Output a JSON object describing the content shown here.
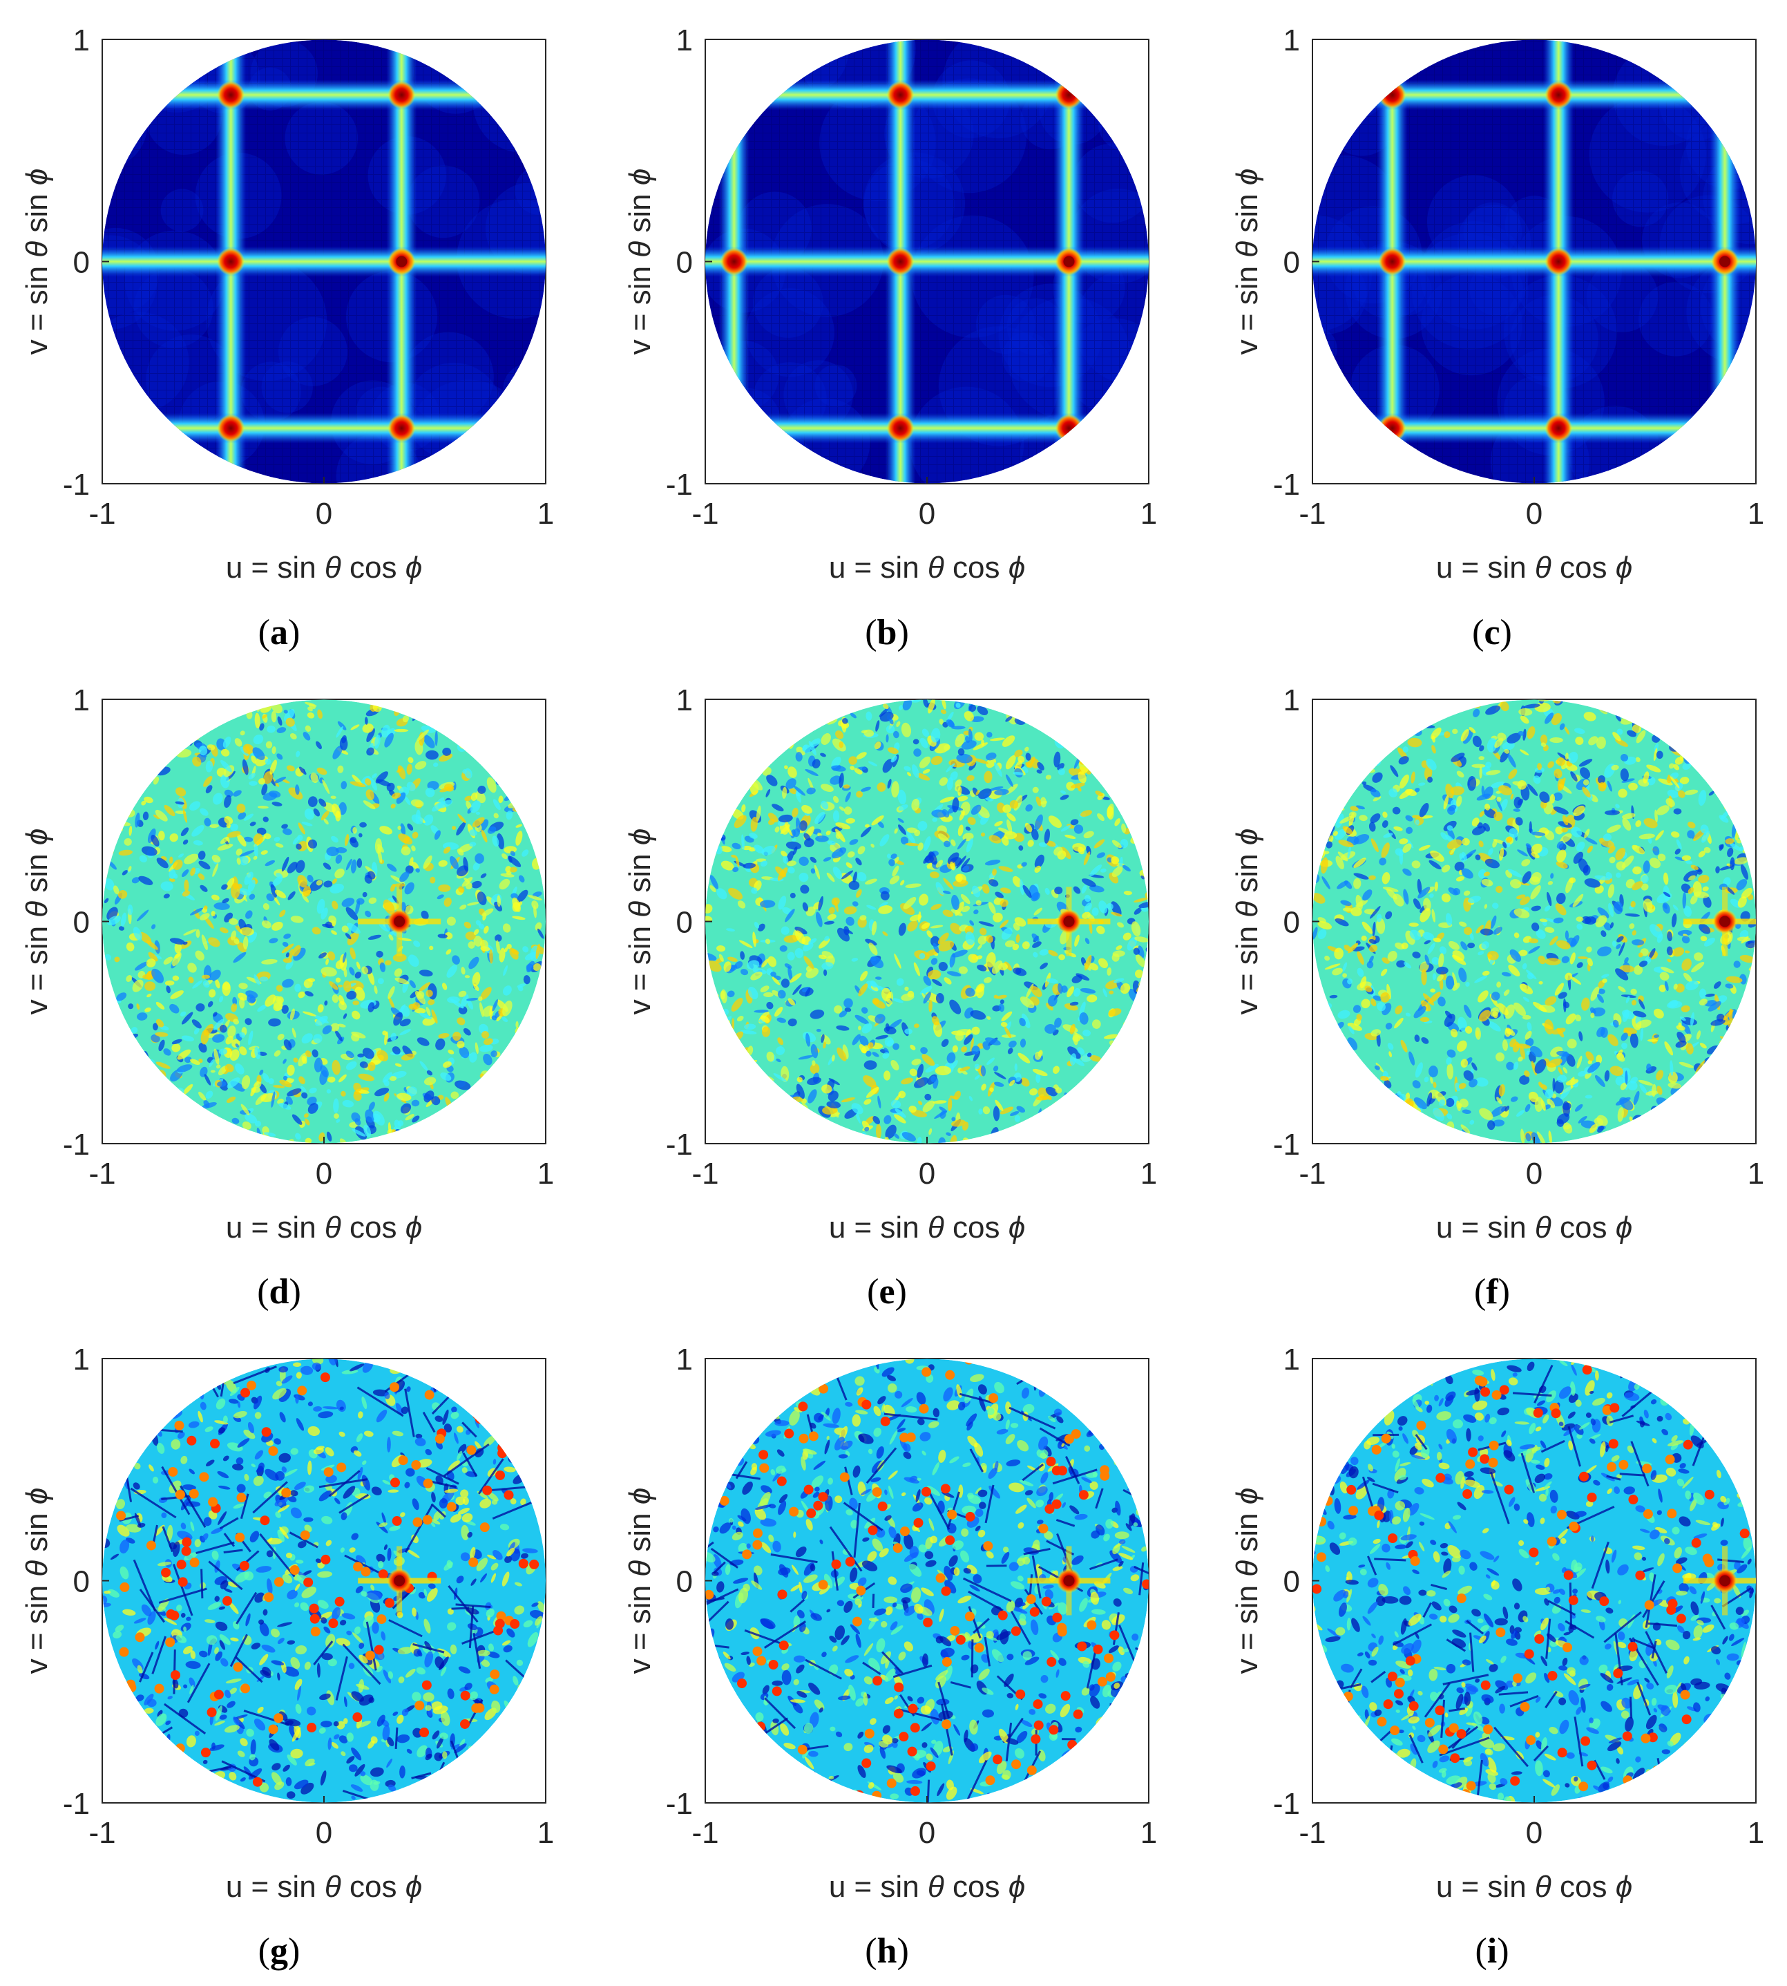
{
  "chart_data": [
    {
      "panel": "a",
      "type": "heatmap",
      "pattern": "grid",
      "xlabel_parts": [
        "u = sin ",
        "θ",
        " cos ",
        "ϕ"
      ],
      "ylabel_parts": [
        "v = sin ",
        "θ",
        " sin ",
        "ϕ"
      ],
      "xlim": [
        -1,
        1
      ],
      "ylim": [
        -1,
        1
      ],
      "xticks": [
        "-1",
        "0",
        "1"
      ],
      "yticks": [
        "-1",
        "0",
        "1"
      ],
      "grid_u": [
        -0.42,
        0.35
      ],
      "grid_v": [
        -0.75,
        0.0,
        0.75
      ],
      "main_beam": [
        0.35,
        0.0
      ]
    },
    {
      "panel": "b",
      "type": "heatmap",
      "pattern": "grid",
      "xlabel_parts": [
        "u = sin ",
        "θ",
        " cos ",
        "ϕ"
      ],
      "ylabel_parts": [
        "v = sin ",
        "θ",
        " sin ",
        "ϕ"
      ],
      "xlim": [
        -1,
        1
      ],
      "ylim": [
        -1,
        1
      ],
      "xticks": [
        "-1",
        "0",
        "1"
      ],
      "yticks": [
        "-1",
        "0",
        "1"
      ],
      "grid_u": [
        -0.87,
        -0.12,
        0.64
      ],
      "grid_v": [
        -0.75,
        0.0,
        0.75
      ],
      "main_beam": [
        0.64,
        0.0
      ]
    },
    {
      "panel": "c",
      "type": "heatmap",
      "pattern": "grid",
      "xlabel_parts": [
        "u = sin ",
        "θ",
        " cos ",
        "ϕ"
      ],
      "ylabel_parts": [
        "v = sin ",
        "θ",
        " sin ",
        "ϕ"
      ],
      "xlim": [
        -1,
        1
      ],
      "ylim": [
        -1,
        1
      ],
      "xticks": [
        "-1",
        "0",
        "1"
      ],
      "yticks": [
        "-1",
        "0",
        "1"
      ],
      "grid_u": [
        -0.64,
        0.11,
        0.86
      ],
      "grid_v": [
        -0.75,
        0.0,
        0.75
      ],
      "main_beam": [
        0.86,
        0.0
      ]
    },
    {
      "panel": "d",
      "type": "heatmap",
      "pattern": "noise",
      "xlabel_parts": [
        "u = sin ",
        "θ",
        " cos ",
        "ϕ"
      ],
      "ylabel_parts": [
        "v = sin ",
        "θ",
        " sin ",
        "ϕ"
      ],
      "xlim": [
        -1,
        1
      ],
      "ylim": [
        -1,
        1
      ],
      "xticks": [
        "-1",
        "0",
        "1"
      ],
      "yticks": [
        "-1",
        "0",
        "1"
      ],
      "main_beam": [
        0.34,
        0.0
      ]
    },
    {
      "panel": "e",
      "type": "heatmap",
      "pattern": "noise",
      "xlabel_parts": [
        "u = sin ",
        "θ",
        " cos ",
        "ϕ"
      ],
      "ylabel_parts": [
        "v = sin ",
        "θ",
        " sin ",
        "ϕ"
      ],
      "xlim": [
        -1,
        1
      ],
      "ylim": [
        -1,
        1
      ],
      "xticks": [
        "-1",
        "0",
        "1"
      ],
      "yticks": [
        "-1",
        "0",
        "1"
      ],
      "main_beam": [
        0.64,
        0.0
      ]
    },
    {
      "panel": "f",
      "type": "heatmap",
      "pattern": "noise",
      "xlabel_parts": [
        "u = sin ",
        "θ",
        " cos ",
        "ϕ"
      ],
      "ylabel_parts": [
        "v = sin ",
        "θ",
        " sin ",
        "ϕ"
      ],
      "xlim": [
        -1,
        1
      ],
      "ylim": [
        -1,
        1
      ],
      "xticks": [
        "-1",
        "0",
        "1"
      ],
      "yticks": [
        "-1",
        "0",
        "1"
      ],
      "main_beam": [
        0.86,
        0.0
      ]
    },
    {
      "panel": "g",
      "type": "heatmap",
      "pattern": "sparse",
      "xlabel_parts": [
        "u = sin ",
        "θ",
        " cos ",
        "ϕ"
      ],
      "ylabel_parts": [
        "v = sin ",
        "θ",
        " sin ",
        "ϕ"
      ],
      "xlim": [
        -1,
        1
      ],
      "ylim": [
        -1,
        1
      ],
      "xticks": [
        "-1",
        "0",
        "1"
      ],
      "yticks": [
        "-1",
        "0",
        "1"
      ],
      "main_beam": [
        0.34,
        0.0
      ]
    },
    {
      "panel": "h",
      "type": "heatmap",
      "pattern": "sparse",
      "xlabel_parts": [
        "u = sin ",
        "θ",
        " cos ",
        "ϕ"
      ],
      "ylabel_parts": [
        "v = sin ",
        "θ",
        " sin ",
        "ϕ"
      ],
      "xlim": [
        -1,
        1
      ],
      "ylim": [
        -1,
        1
      ],
      "xticks": [
        "-1",
        "0",
        "1"
      ],
      "yticks": [
        "-1",
        "0",
        "1"
      ],
      "main_beam": [
        0.64,
        0.0
      ]
    },
    {
      "panel": "i",
      "type": "heatmap",
      "pattern": "sparse",
      "xlabel_parts": [
        "u = sin ",
        "θ",
        " cos ",
        "ϕ"
      ],
      "ylabel_parts": [
        "v = sin ",
        "θ",
        " sin ",
        "ϕ"
      ],
      "xlim": [
        -1,
        1
      ],
      "ylim": [
        -1,
        1
      ],
      "xticks": [
        "-1",
        "0",
        "1"
      ],
      "yticks": [
        "-1",
        "0",
        "1"
      ],
      "main_beam": [
        0.86,
        0.0
      ]
    }
  ],
  "colors": {
    "background": "#00008f",
    "low": "#0000c8",
    "mid": "#40ffc0",
    "high": "#ffff00",
    "peak": "#a00000",
    "axis": "#262626"
  }
}
